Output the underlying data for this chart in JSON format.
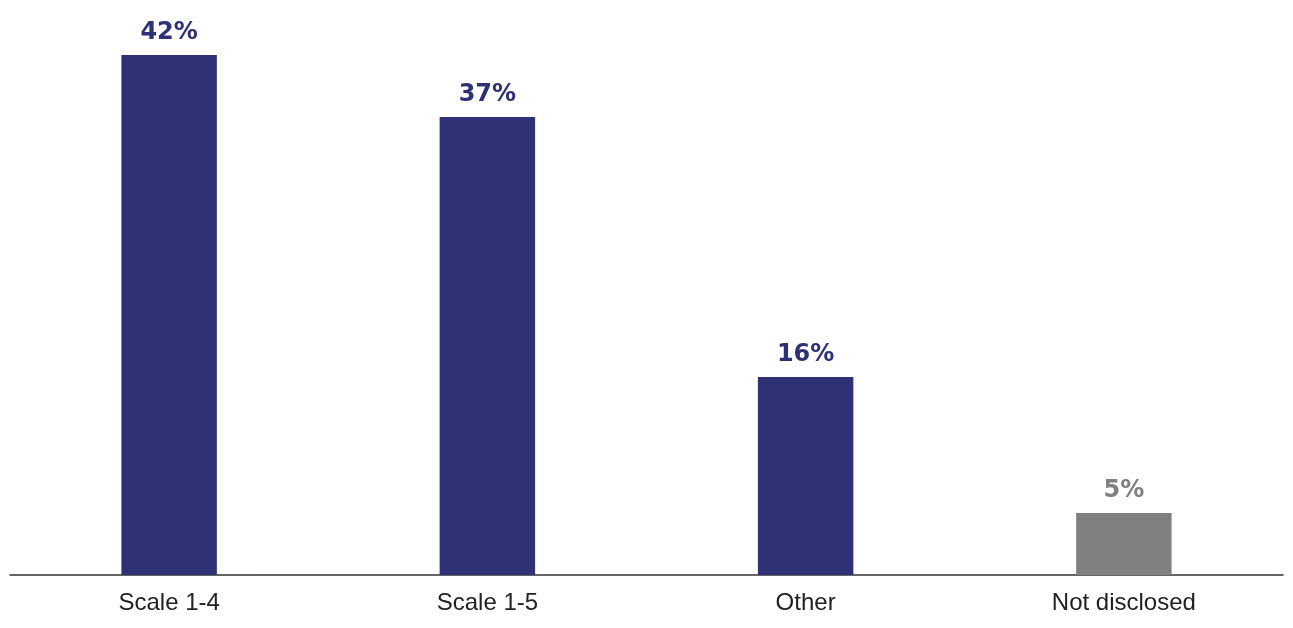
{
  "chart_data": {
    "type": "bar",
    "categories": [
      "Scale 1-4",
      "Scale 1-5",
      "Other",
      "Not disclosed"
    ],
    "values": [
      42,
      37,
      16,
      5
    ],
    "colors": [
      "#2e3175",
      "#2e3175",
      "#2e3175",
      "#808080"
    ],
    "value_labels": [
      "42%",
      "37%",
      "16%",
      "5%"
    ]
  }
}
